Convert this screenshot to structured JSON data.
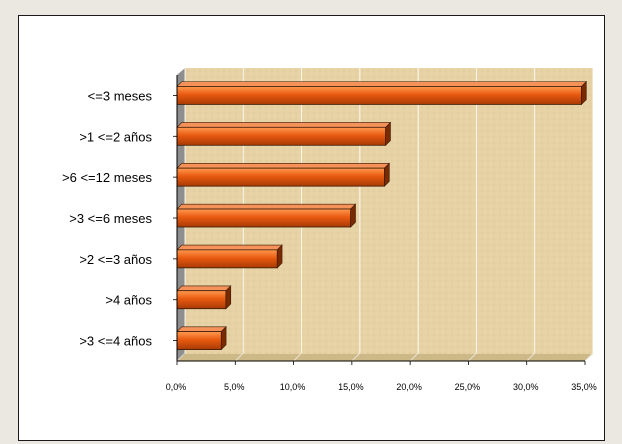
{
  "chart_data": {
    "type": "bar",
    "orientation": "horizontal",
    "categories": [
      "<=3 meses",
      ">1 <=2  años",
      ">6 <=12  meses",
      ">3 <=6  meses",
      ">2 <=3  años",
      ">4 años",
      ">3 <=4  años"
    ],
    "values": [
      34.7,
      17.9,
      17.8,
      14.9,
      8.6,
      4.2,
      3.8
    ],
    "x_ticks": [
      "0,0%",
      "5,0%",
      "10,0%",
      "15,0%",
      "20,0%",
      "25,0%",
      "30,0%",
      "35,0%"
    ],
    "xlim": [
      0,
      35
    ],
    "grid": true,
    "title": "",
    "xlabel": "",
    "ylabel": "",
    "bar_color": "#e85a10",
    "plot_background": "#e8d4a6"
  }
}
